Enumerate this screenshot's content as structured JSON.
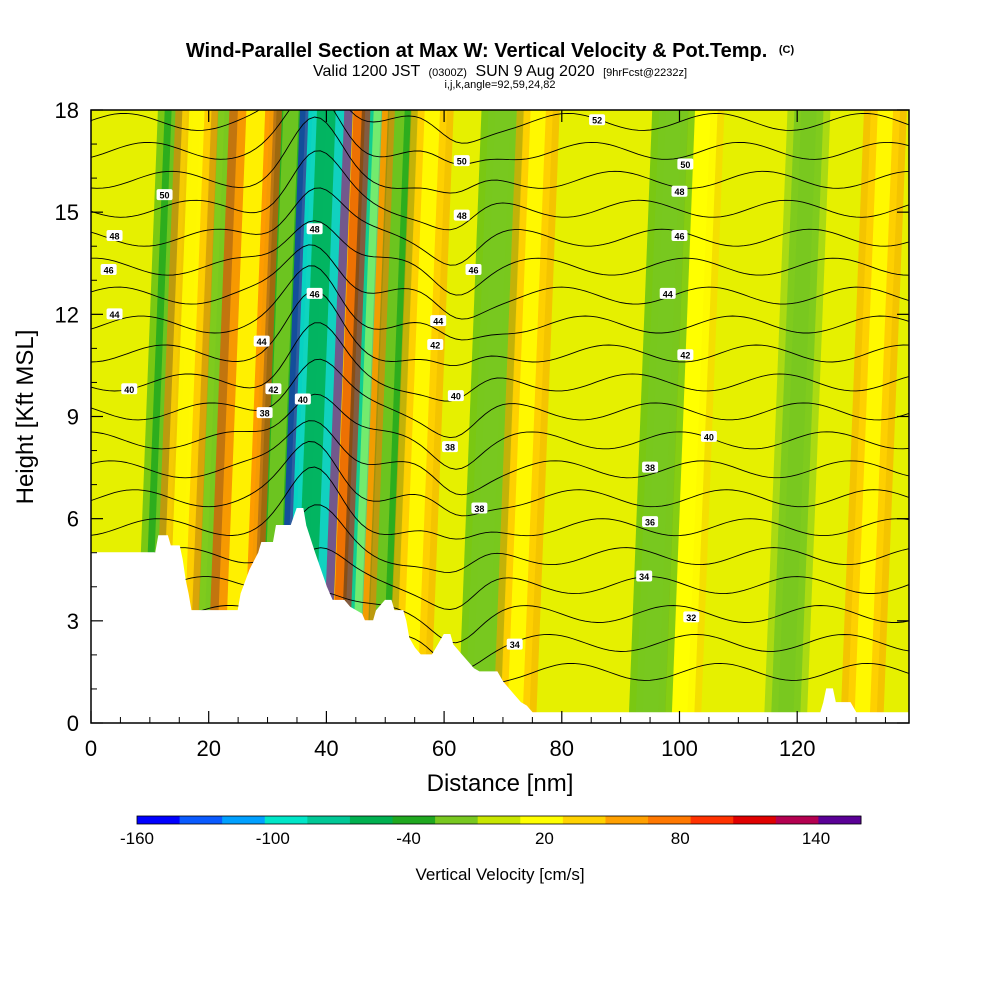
{
  "chart_data": {
    "type": "heatmap",
    "title": "Wind-Parallel Section at Max W: Vertical Velocity & Pot.Temp.",
    "title_mark": "(C)",
    "subtitle_parts": [
      "Valid 1200 JST",
      "(0300Z)",
      "SUN 9 Aug 2020",
      "[9hrFcst@2232z]"
    ],
    "subtitle2": "i,j,k,angle=92,59,24,82",
    "xlabel": "Distance [nm]",
    "ylabel": "Height [Kft MSL]",
    "xlim": [
      0,
      139
    ],
    "ylim": [
      0,
      18
    ],
    "x_ticks": [
      0,
      20,
      40,
      60,
      80,
      100,
      120
    ],
    "y_ticks": [
      0,
      3,
      6,
      9,
      12,
      15,
      18
    ],
    "colorbar": {
      "title": "Vertical Velocity [cm/s]",
      "labels": [
        "-160",
        "-100",
        "-40",
        "20",
        "80",
        "140"
      ],
      "colors": [
        "#0000ff",
        "#0a5aff",
        "#00a0ff",
        "#00e6c8",
        "#00c896",
        "#00b050",
        "#20a820",
        "#78c820",
        "#c8e600",
        "#ffff00",
        "#ffd200",
        "#ffa000",
        "#ff7800",
        "#ff3200",
        "#e00000",
        "#b40050",
        "#5a0096"
      ]
    },
    "terrain_profile": [
      [
        0,
        5
      ],
      [
        11,
        5
      ],
      [
        11.5,
        5.5
      ],
      [
        13,
        5.5
      ],
      [
        13.5,
        5.2
      ],
      [
        15,
        5.2
      ],
      [
        15.5,
        4.8
      ],
      [
        16,
        4.2
      ],
      [
        16.5,
        3.8
      ],
      [
        17,
        3.3
      ],
      [
        25,
        3.3
      ],
      [
        25.5,
        3.8
      ],
      [
        27,
        4.5
      ],
      [
        28.5,
        5
      ],
      [
        29,
        5.3
      ],
      [
        31,
        5.3
      ],
      [
        31.5,
        5.8
      ],
      [
        34,
        5.8
      ],
      [
        35,
        6.3
      ],
      [
        36,
        6.3
      ],
      [
        36.5,
        5.8
      ],
      [
        38,
        5
      ],
      [
        39,
        4.5
      ],
      [
        40,
        4
      ],
      [
        41,
        3.6
      ],
      [
        43,
        3.6
      ],
      [
        44,
        3.4
      ],
      [
        46,
        3.2
      ],
      [
        46.5,
        3
      ],
      [
        48,
        3
      ],
      [
        48.5,
        3.3
      ],
      [
        50,
        3.6
      ],
      [
        51,
        3.6
      ],
      [
        51.5,
        3.3
      ],
      [
        53,
        3.3
      ],
      [
        53.5,
        3
      ],
      [
        54,
        2.5
      ],
      [
        55,
        2.2
      ],
      [
        56,
        2
      ],
      [
        58,
        2
      ],
      [
        59,
        2.3
      ],
      [
        60,
        2.6
      ],
      [
        61,
        2.6
      ],
      [
        61.5,
        2.3
      ],
      [
        63,
        2
      ],
      [
        64,
        1.8
      ],
      [
        65,
        1.6
      ],
      [
        66,
        1.5
      ],
      [
        69,
        1.5
      ],
      [
        70,
        1.2
      ],
      [
        71,
        1
      ],
      [
        72,
        0.8
      ],
      [
        73,
        0.6
      ],
      [
        74,
        0.5
      ],
      [
        75,
        0.3
      ],
      [
        124,
        0.3
      ],
      [
        124.5,
        0.6
      ],
      [
        125,
        1
      ],
      [
        126,
        1
      ],
      [
        126.5,
        0.6
      ],
      [
        129,
        0.6
      ],
      [
        130,
        0.3
      ],
      [
        139,
        0.3
      ]
    ],
    "updraft_bands": [
      {
        "x": 14,
        "value": 70
      },
      {
        "x": 24,
        "value": 90
      },
      {
        "x": 39,
        "value": 120
      },
      {
        "x": 44,
        "value": 80
      },
      {
        "x": 54,
        "value": 60
      },
      {
        "x": 72,
        "value": 50
      },
      {
        "x": 100,
        "value": 40
      },
      {
        "x": 131,
        "value": 50
      }
    ],
    "downdraft_bands": [
      {
        "x": 11,
        "value": -50
      },
      {
        "x": 20,
        "value": -30
      },
      {
        "x": 30,
        "value": -60
      },
      {
        "x": 36,
        "value": -160
      },
      {
        "x": 41,
        "value": -110
      },
      {
        "x": 48,
        "value": -50
      },
      {
        "x": 66,
        "value": -45
      },
      {
        "x": 95,
        "value": -40
      },
      {
        "x": 118,
        "value": -20
      }
    ],
    "contour_labels": [
      {
        "text": "52",
        "x": 86,
        "y": 17.7
      },
      {
        "text": "50",
        "x": 63,
        "y": 16.5
      },
      {
        "text": "50",
        "x": 101,
        "y": 16.4
      },
      {
        "text": "50",
        "x": 12.5,
        "y": 15.5
      },
      {
        "text": "48",
        "x": 100,
        "y": 15.6
      },
      {
        "text": "48",
        "x": 63,
        "y": 14.9
      },
      {
        "text": "48",
        "x": 38,
        "y": 14.5
      },
      {
        "text": "48",
        "x": 4,
        "y": 14.3
      },
      {
        "text": "46",
        "x": 100,
        "y": 14.3
      },
      {
        "text": "46",
        "x": 65,
        "y": 13.3
      },
      {
        "text": "46",
        "x": 3,
        "y": 13.3
      },
      {
        "text": "46",
        "x": 38,
        "y": 12.6
      },
      {
        "text": "44",
        "x": 98,
        "y": 12.6
      },
      {
        "text": "44",
        "x": 4,
        "y": 12
      },
      {
        "text": "44",
        "x": 59,
        "y": 11.8
      },
      {
        "text": "42",
        "x": 58.5,
        "y": 11.1
      },
      {
        "text": "44",
        "x": 29,
        "y": 11.2
      },
      {
        "text": "42",
        "x": 101,
        "y": 10.8
      },
      {
        "text": "40",
        "x": 6.5,
        "y": 9.8
      },
      {
        "text": "42",
        "x": 31,
        "y": 9.8
      },
      {
        "text": "40",
        "x": 36,
        "y": 9.5
      },
      {
        "text": "40",
        "x": 62,
        "y": 9.6
      },
      {
        "text": "38",
        "x": 29.5,
        "y": 9.1
      },
      {
        "text": "40",
        "x": 105,
        "y": 8.4
      },
      {
        "text": "38",
        "x": 61,
        "y": 8.1
      },
      {
        "text": "38",
        "x": 95,
        "y": 7.5
      },
      {
        "text": "38",
        "x": 66,
        "y": 6.3
      },
      {
        "text": "36",
        "x": 95,
        "y": 5.9
      },
      {
        "text": "34",
        "x": 94,
        "y": 4.3
      },
      {
        "text": "32",
        "x": 102,
        "y": 3.1
      },
      {
        "text": "34",
        "x": 72,
        "y": 2.3
      }
    ]
  }
}
